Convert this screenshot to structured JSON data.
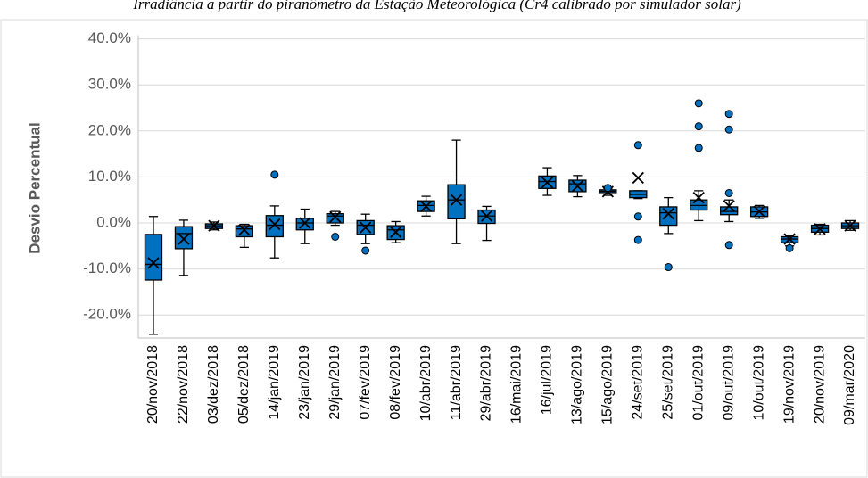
{
  "chart_data": {
    "type": "box",
    "title": "Irradiância a partir do piranômetro da Estação Meteorológica (Cr4 calibrado por simulador solar)",
    "y_label": "Desvio Percentual",
    "color": "#0070c0",
    "grid": true,
    "ylim": [
      -25,
      40
    ],
    "yticks": [
      {
        "value": -20,
        "label": "-20.0%"
      },
      {
        "value": -10,
        "label": "-10.0%"
      },
      {
        "value": 0,
        "label": "0.0%"
      },
      {
        "value": 10,
        "label": "10.0%"
      },
      {
        "value": 20,
        "label": "20.0%"
      },
      {
        "value": 30,
        "label": "30.0%"
      },
      {
        "value": 40,
        "label": "40.0%"
      }
    ],
    "categories": [
      "20/nov/2018",
      "22/nov/2018",
      "03/dez/2018",
      "05/dez/2018",
      "14/jan/2019",
      "23/jan/2019",
      "29/jan/2019",
      "07/fev/2019",
      "08/fev/2019",
      "10/abr/2019",
      "11/abr/2019",
      "29/abr/2019",
      "16/mai/2019",
      "16/jul/2019",
      "13/ago/2019",
      "15/ago/2019",
      "24/set/2019",
      "25/set/2019",
      "01/out/2019",
      "09/out/2019",
      "10/out/2019",
      "19/nov/2019",
      "20/nov/2019",
      "09/mar/2020"
    ],
    "boxes": [
      {
        "min": -24.2,
        "q1": -12.4,
        "median": -9,
        "q3": -2.5,
        "max": 1.4,
        "mean": -8.7,
        "outliers": []
      },
      {
        "min": -11.4,
        "q1": -5.6,
        "median": -2.3,
        "q3": -0.8,
        "max": 0.6,
        "mean": -3.5,
        "outliers": []
      },
      {
        "min": -1.5,
        "q1": -1.2,
        "median": -0.6,
        "q3": -0.2,
        "max": 0.2,
        "mean": -0.6,
        "outliers": []
      },
      {
        "min": -5.3,
        "q1": -3,
        "median": -1.3,
        "q3": -0.6,
        "max": -0.3,
        "mean": -1.5,
        "outliers": []
      },
      {
        "min": -7.6,
        "q1": -3,
        "median": -0.5,
        "q3": 1.6,
        "max": 3.7,
        "mean": -0.3,
        "outliers": [
          10.5
        ]
      },
      {
        "min": -4.5,
        "q1": -1.5,
        "median": 0,
        "q3": 1,
        "max": 3,
        "mean": 0,
        "outliers": []
      },
      {
        "min": -0.5,
        "q1": 0,
        "median": 1.5,
        "q3": 2,
        "max": 2.5,
        "mean": 1.3,
        "outliers": [
          -3
        ]
      },
      {
        "min": -4.5,
        "q1": -2.5,
        "median": -0.5,
        "q3": 0.5,
        "max": 1.9,
        "mean": -1,
        "outliers": [
          -6
        ]
      },
      {
        "min": -4.3,
        "q1": -3.6,
        "median": -1.5,
        "q3": -0.6,
        "max": 0.3,
        "mean": -2,
        "outliers": []
      },
      {
        "min": 1.5,
        "q1": 2.5,
        "median": 3.8,
        "q3": 4.8,
        "max": 5.8,
        "mean": 3.6,
        "outliers": []
      },
      {
        "min": -4.5,
        "q1": 0.9,
        "median": 5,
        "q3": 8.3,
        "max": 18,
        "mean": 5,
        "outliers": []
      },
      {
        "min": -3.8,
        "q1": -0.1,
        "median": 1.5,
        "q3": 2.8,
        "max": 3.6,
        "mean": 1.5,
        "outliers": []
      },
      null,
      {
        "min": 6,
        "q1": 7.5,
        "median": 9,
        "q3": 10.2,
        "max": 12,
        "mean": 8.8,
        "outliers": []
      },
      {
        "min": 5.7,
        "q1": 6.8,
        "median": 8.5,
        "q3": 9.3,
        "max": 10.3,
        "mean": 8,
        "outliers": []
      },
      {
        "min": 6,
        "q1": 6.6,
        "median": 6.9,
        "q3": 7.2,
        "max": 7.5,
        "mean": 6.8,
        "outliers": [
          7.6
        ]
      },
      {
        "min": 5.3,
        "q1": 5.5,
        "median": 6.2,
        "q3": 7,
        "max": 7,
        "mean": 9.8,
        "outliers": [
          16.9,
          1.4,
          -3.7
        ]
      },
      {
        "min": -2.3,
        "q1": -0.5,
        "median": 2.2,
        "q3": 3.5,
        "max": 5.5,
        "mean": 2,
        "outliers": [
          -9.6
        ]
      },
      {
        "min": 0.5,
        "q1": 2.8,
        "median": 3.8,
        "q3": 5,
        "max": 7,
        "mean": 5.5,
        "outliers": [
          26,
          21,
          16.3
        ]
      },
      {
        "min": 0.3,
        "q1": 1.8,
        "median": 2.5,
        "q3": 3.5,
        "max": 5,
        "mean": 3.7,
        "outliers": [
          23.7,
          20.3,
          6.5,
          -4.8
        ]
      },
      {
        "min": 1,
        "q1": 1.4,
        "median": 2.4,
        "q3": 3.5,
        "max": 3.8,
        "mean": 2.5,
        "outliers": []
      },
      {
        "min": -5,
        "q1": -4.3,
        "median": -3.5,
        "q3": -3,
        "max": -2.8,
        "mean": -3.5,
        "outliers": [
          -5.5
        ]
      },
      {
        "min": -2.6,
        "q1": -2,
        "median": -1.2,
        "q3": -0.5,
        "max": -0.3,
        "mean": -1.3,
        "outliers": []
      },
      {
        "min": -1.6,
        "q1": -1.2,
        "median": -0.6,
        "q3": 0,
        "max": 0.5,
        "mean": -0.6,
        "outliers": []
      }
    ]
  }
}
